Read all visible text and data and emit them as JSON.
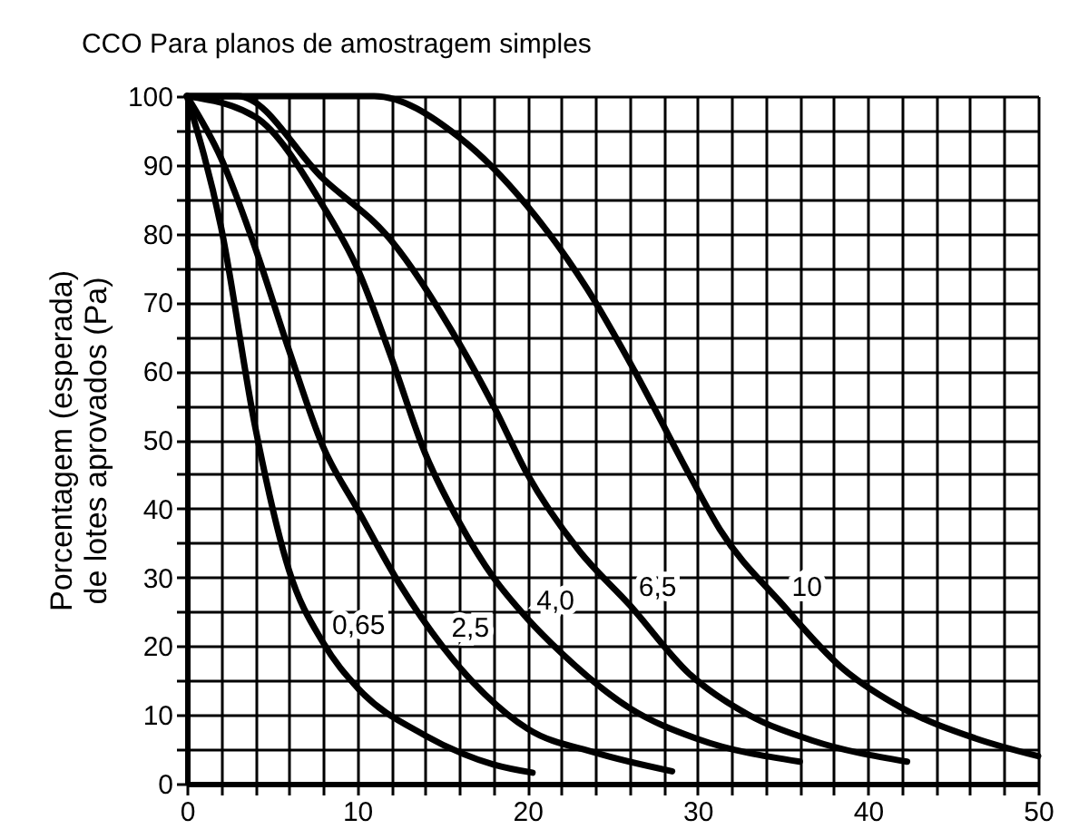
{
  "chart_data": {
    "type": "line",
    "title": "CCO Para planos de amostragem simples",
    "ylabel": "Porcentagem (esperada)\nde lotes aprovados (Pa)",
    "xlim": [
      0,
      50
    ],
    "ylim": [
      0,
      100
    ],
    "grid": true,
    "legend": false,
    "line_style": "solid",
    "xticks": [
      0,
      {
        "value": 2,
        "label": null
      },
      {
        "value": 4,
        "label": null
      },
      {
        "value": 6,
        "label": null
      },
      {
        "value": 8,
        "label": null
      },
      10,
      {
        "value": 12,
        "label": null
      },
      {
        "value": 14,
        "label": null
      },
      {
        "value": 16,
        "label": null
      },
      {
        "value": 18,
        "label": null
      },
      20,
      {
        "value": 22,
        "label": null
      },
      {
        "value": 24,
        "label": null
      },
      {
        "value": 26,
        "label": null
      },
      {
        "value": 28,
        "label": null
      },
      30,
      {
        "value": 32,
        "label": null
      },
      {
        "value": 34,
        "label": null
      },
      {
        "value": 36,
        "label": null
      },
      {
        "value": 38,
        "label": null
      },
      40,
      {
        "value": 42,
        "label": null
      },
      {
        "value": 44,
        "label": null
      },
      {
        "value": 46,
        "label": null
      },
      {
        "value": 48,
        "label": null
      },
      50
    ],
    "yticks": [
      0,
      {
        "value": 5,
        "label": null
      },
      10,
      {
        "value": 15,
        "label": null
      },
      20,
      {
        "value": 25,
        "label": null
      },
      30,
      {
        "value": 35,
        "label": null
      },
      40,
      {
        "value": 45,
        "label": null
      },
      50,
      {
        "value": 55,
        "label": null
      },
      60,
      {
        "value": 65,
        "label": null
      },
      70,
      {
        "value": 75,
        "label": null
      },
      80,
      {
        "value": 85,
        "label": null
      },
      90,
      {
        "value": 95,
        "label": null
      },
      100
    ],
    "series": [
      {
        "name": "0,65",
        "color": "#000000",
        "x": [
          0,
          2,
          4,
          6,
          8,
          10,
          14,
          18,
          20.3
        ],
        "values": [
          100,
          81,
          52,
          31,
          20.5,
          14,
          7,
          2.8,
          1.6
        ]
      },
      {
        "name": "2,5",
        "color": "#000000",
        "x": [
          0,
          2,
          4,
          6,
          8,
          10,
          12.5,
          15,
          17.5,
          20,
          24,
          28.5
        ],
        "values": [
          100,
          91,
          78,
          63,
          49,
          40,
          29,
          20,
          13,
          8,
          4.5,
          1.8
        ]
      },
      {
        "name": "4,0",
        "color": "#000000",
        "x": [
          0,
          4,
          8,
          10,
          12,
          14,
          16,
          18,
          20,
          22,
          26,
          30,
          36
        ],
        "values": [
          100,
          97,
          84,
          75,
          62,
          48,
          38,
          30,
          24,
          19,
          11,
          6.5,
          3.2
        ]
      },
      {
        "name": "6,5",
        "color": "#000000",
        "x": [
          0,
          3,
          8,
          12,
          16,
          18,
          20,
          23,
          26,
          29.5,
          33,
          36.7,
          42.3
        ],
        "values": [
          100,
          100,
          88,
          79,
          64,
          55,
          45,
          34,
          26,
          16,
          10,
          6.3,
          3.2
        ]
      },
      {
        "name": "10",
        "color": "#000000",
        "x": [
          0,
          11,
          16,
          20,
          23.5,
          26.3,
          29.5,
          31.3,
          35,
          38.4,
          42,
          46.3,
          50
        ],
        "values": [
          100,
          100,
          94,
          84,
          72,
          60,
          45,
          37,
          26,
          17,
          11,
          6.6,
          4
        ]
      }
    ]
  }
}
